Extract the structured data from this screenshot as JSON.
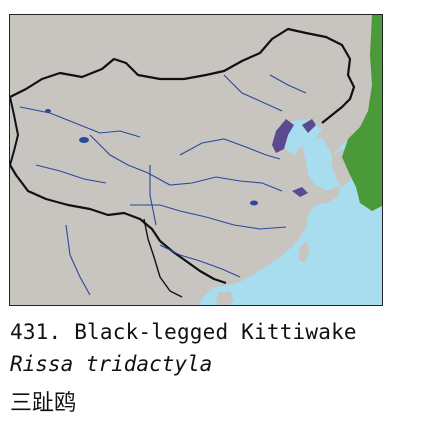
{
  "species": {
    "number_name": "431. Black-legged Kittiwake",
    "scientific_name": "Rissa tridactyla",
    "chinese_name": "三趾鸥"
  },
  "map": {
    "land_color": "#c8c4c0",
    "sea_color": "#a8dcef",
    "river_color": "#2a4a9a",
    "border_color": "#111111",
    "range_breeding_color": "#4a9a3a",
    "range_winter_color": "#5a4a8e"
  }
}
